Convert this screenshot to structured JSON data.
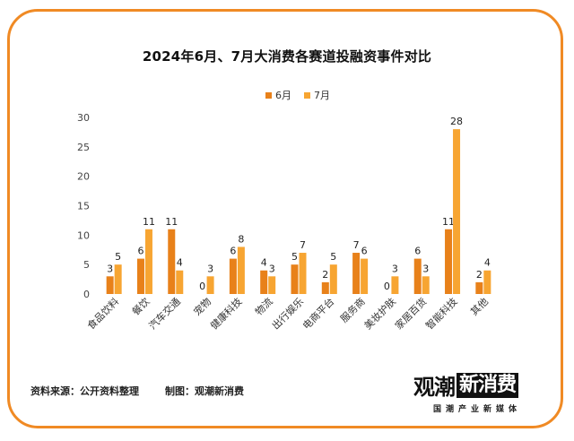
{
  "chart_data": {
    "type": "bar",
    "title": "2024年6月、7月大消费各赛道投融资事件对比",
    "categories": [
      "食品饮料",
      "餐饮",
      "汽车交通",
      "宠物",
      "健康科技",
      "物流",
      "出行娱乐",
      "电商平台",
      "服务商",
      "美妆护肤",
      "家居百货",
      "智能科技",
      "其他"
    ],
    "series": [
      {
        "name": "6月",
        "values": [
          3,
          6,
          11,
          0,
          6,
          4,
          5,
          2,
          7,
          0,
          6,
          11,
          2
        ]
      },
      {
        "name": "7月",
        "values": [
          5,
          11,
          4,
          3,
          8,
          3,
          7,
          5,
          6,
          3,
          3,
          28,
          4
        ]
      }
    ],
    "ylim": [
      0,
      30
    ],
    "yticks": [
      "0",
      "5",
      "10",
      "15",
      "20",
      "25",
      "30"
    ],
    "legend_position": "top-center",
    "grid": false,
    "colors": [
      "#e8811a",
      "#f7a532"
    ]
  },
  "footer": {
    "source": "资料来源：公开资料整理",
    "maker": "制图：观潮新消费"
  },
  "logo": {
    "text_a": "观潮",
    "text_b": "新消费",
    "sub": "国潮产业新媒体"
  }
}
